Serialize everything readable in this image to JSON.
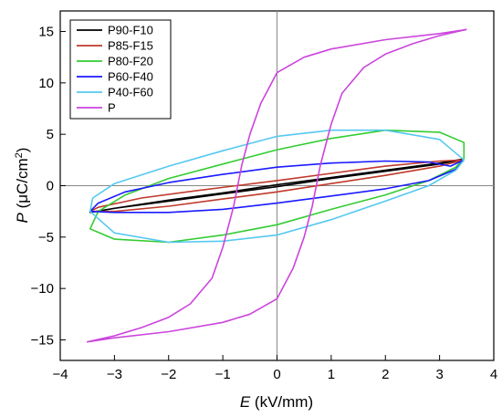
{
  "chart_data": {
    "type": "line",
    "title": "",
    "xlabel": {
      "symbol": "E",
      "unit": " (kV/mm)"
    },
    "ylabel": {
      "symbol": "P",
      "unit_pre": " (μC/cm",
      "unit_sup": "2",
      "unit_post": ")"
    },
    "xlim": [
      -4,
      4
    ],
    "ylim": [
      -17,
      17
    ],
    "xticks": [
      -4,
      -3,
      -2,
      -1,
      0,
      1,
      2,
      3,
      4
    ],
    "yticks": [
      -15,
      -10,
      -5,
      0,
      5,
      10,
      15
    ],
    "zero_lines": true,
    "grid": false,
    "legend_position": "top-left",
    "series": [
      {
        "name": "P90-F10",
        "color": "#000000",
        "points": [
          [
            3.45,
            2.6
          ],
          [
            3.0,
            2.1
          ],
          [
            2.0,
            1.4
          ],
          [
            1.0,
            0.7
          ],
          [
            0.0,
            -0.1
          ],
          [
            -1.0,
            -0.8
          ],
          [
            -2.0,
            -1.5
          ],
          [
            -3.0,
            -2.2
          ],
          [
            -3.45,
            -2.6
          ],
          [
            -3.0,
            -2.2
          ],
          [
            -2.0,
            -1.4
          ],
          [
            -1.0,
            -0.7
          ],
          [
            0.0,
            0.1
          ],
          [
            1.0,
            0.8
          ],
          [
            2.0,
            1.5
          ],
          [
            3.0,
            2.2
          ],
          [
            3.45,
            2.6
          ]
        ]
      },
      {
        "name": "P85-F15",
        "color": "#c0392b",
        "points": [
          [
            3.45,
            2.5
          ],
          [
            3.0,
            1.9
          ],
          [
            2.0,
            1.0
          ],
          [
            1.0,
            0.2
          ],
          [
            0.0,
            -0.6
          ],
          [
            -1.0,
            -1.3
          ],
          [
            -2.0,
            -2.0
          ],
          [
            -3.0,
            -2.5
          ],
          [
            -3.45,
            -2.5
          ],
          [
            -3.3,
            -2.1
          ],
          [
            -2.5,
            -1.2
          ],
          [
            -1.5,
            -0.5
          ],
          [
            0.0,
            0.5
          ],
          [
            1.0,
            1.2
          ],
          [
            2.0,
            1.9
          ],
          [
            3.0,
            2.4
          ],
          [
            3.45,
            2.5
          ]
        ]
      },
      {
        "name": "P80-F20",
        "color": "#33cc33",
        "points": [
          [
            3.45,
            2.6
          ],
          [
            3.3,
            1.8
          ],
          [
            2.8,
            0.5
          ],
          [
            2.0,
            -0.9
          ],
          [
            1.0,
            -2.3
          ],
          [
            0.0,
            -3.8
          ],
          [
            -1.0,
            -4.8
          ],
          [
            -2.0,
            -5.5
          ],
          [
            -3.0,
            -5.2
          ],
          [
            -3.45,
            -4.2
          ],
          [
            -3.3,
            -2.5
          ],
          [
            -2.8,
            -0.9
          ],
          [
            -2.0,
            0.7
          ],
          [
            -1.0,
            2.1
          ],
          [
            0.0,
            3.5
          ],
          [
            1.0,
            4.6
          ],
          [
            2.0,
            5.4
          ],
          [
            3.0,
            5.2
          ],
          [
            3.45,
            4.2
          ],
          [
            3.45,
            2.6
          ]
        ]
      },
      {
        "name": "P60-F40",
        "color": "#1a1aff",
        "points": [
          [
            3.45,
            2.5
          ],
          [
            3.3,
            1.6
          ],
          [
            2.8,
            0.5
          ],
          [
            2.0,
            -0.3
          ],
          [
            1.0,
            -1.0
          ],
          [
            0.0,
            -1.7
          ],
          [
            -1.0,
            -2.3
          ],
          [
            -2.0,
            -2.6
          ],
          [
            -3.0,
            -2.6
          ],
          [
            -3.45,
            -2.5
          ],
          [
            -3.3,
            -1.7
          ],
          [
            -2.8,
            -0.6
          ],
          [
            -2.0,
            0.3
          ],
          [
            -1.0,
            1.1
          ],
          [
            0.0,
            1.8
          ],
          [
            1.0,
            2.2
          ],
          [
            2.0,
            2.4
          ],
          [
            2.8,
            2.3
          ],
          [
            3.2,
            1.9
          ],
          [
            3.45,
            2.5
          ]
        ]
      },
      {
        "name": "P40-F60",
        "color": "#55c8f0",
        "points": [
          [
            3.45,
            2.5
          ],
          [
            3.3,
            1.5
          ],
          [
            2.8,
            0.0
          ],
          [
            2.0,
            -1.5
          ],
          [
            1.0,
            -3.3
          ],
          [
            0.0,
            -4.8
          ],
          [
            -1.0,
            -5.4
          ],
          [
            -2.0,
            -5.5
          ],
          [
            -3.0,
            -4.6
          ],
          [
            -3.45,
            -2.5
          ],
          [
            -3.4,
            -1.2
          ],
          [
            -3.0,
            0.2
          ],
          [
            -2.0,
            1.9
          ],
          [
            -1.0,
            3.4
          ],
          [
            0.0,
            4.8
          ],
          [
            1.0,
            5.4
          ],
          [
            2.0,
            5.4
          ],
          [
            3.0,
            4.5
          ],
          [
            3.45,
            2.5
          ]
        ]
      },
      {
        "name": "P",
        "color": "#cc44dd",
        "points": [
          [
            3.5,
            15.2
          ],
          [
            3.0,
            14.6
          ],
          [
            2.5,
            13.8
          ],
          [
            2.0,
            12.8
          ],
          [
            1.6,
            11.5
          ],
          [
            1.2,
            9.0
          ],
          [
            1.0,
            6.0
          ],
          [
            0.8,
            2.0
          ],
          [
            0.65,
            -2.0
          ],
          [
            0.5,
            -5.0
          ],
          [
            0.3,
            -8.0
          ],
          [
            0.0,
            -11.0
          ],
          [
            -0.5,
            -12.5
          ],
          [
            -1.0,
            -13.3
          ],
          [
            -2.0,
            -14.2
          ],
          [
            -3.0,
            -14.8
          ],
          [
            -3.5,
            -15.2
          ],
          [
            -3.0,
            -14.6
          ],
          [
            -2.5,
            -13.8
          ],
          [
            -2.0,
            -12.8
          ],
          [
            -1.6,
            -11.5
          ],
          [
            -1.2,
            -9.0
          ],
          [
            -1.0,
            -6.0
          ],
          [
            -0.8,
            -2.0
          ],
          [
            -0.65,
            2.0
          ],
          [
            -0.5,
            5.0
          ],
          [
            -0.3,
            8.0
          ],
          [
            0.0,
            11.0
          ],
          [
            0.5,
            12.5
          ],
          [
            1.0,
            13.3
          ],
          [
            2.0,
            14.2
          ],
          [
            3.0,
            14.8
          ],
          [
            3.5,
            15.2
          ]
        ]
      }
    ]
  }
}
